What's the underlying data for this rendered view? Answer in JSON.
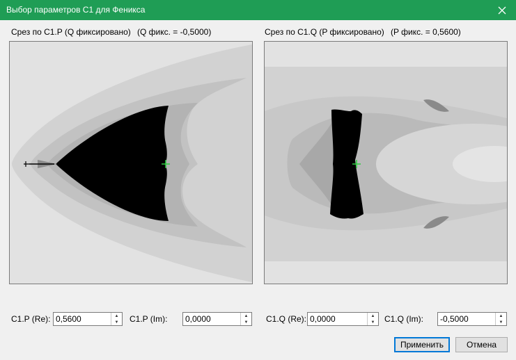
{
  "window": {
    "title": "Выбор параметров C1 для Феникса"
  },
  "left_panel": {
    "label": "Срез по C1.P (Q фиксировано)",
    "fixed_note": "(Q фикс. = -0,5000)"
  },
  "right_panel": {
    "label": "Срез по C1.Q (P фиксировано)",
    "fixed_note": "(P фикс. = 0,5600)"
  },
  "fields": {
    "p_re": {
      "label": "C1.P (Re):",
      "value": "0,5600"
    },
    "p_im": {
      "label": "C1.P (Im):",
      "value": "0,0000"
    },
    "q_re": {
      "label": "C1.Q (Re):",
      "value": "0,0000"
    },
    "q_im": {
      "label": "C1.Q (Im):",
      "value": "-0,5000"
    }
  },
  "buttons": {
    "apply": "Применить",
    "cancel": "Отмена"
  },
  "colors": {
    "titlebar": "#1f9d55",
    "marker": "#2ecc40"
  },
  "icons": {
    "close": "close-icon",
    "spin_up": "chevron-up-icon",
    "spin_down": "chevron-down-icon"
  }
}
